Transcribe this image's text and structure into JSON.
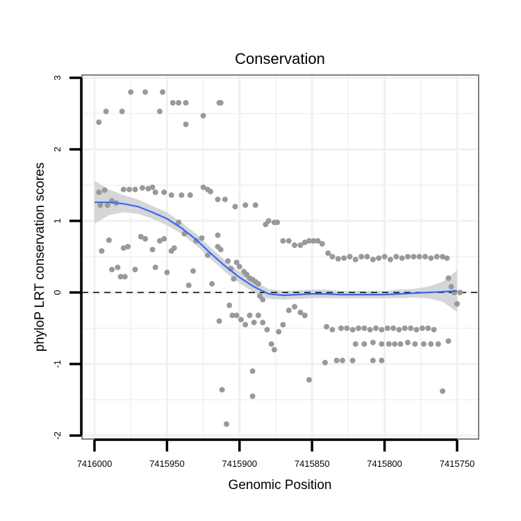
{
  "chart_data": {
    "type": "scatter",
    "title": "Conservation",
    "xlabel": "Genomic Position",
    "ylabel": "phyloP LRT conservation scores",
    "x_reversed": true,
    "xlim": [
      7416003,
      7415745
    ],
    "ylim": [
      -2,
      3
    ],
    "x_ticks": [
      7416000,
      7415950,
      7415900,
      7415850,
      7415800,
      7415750
    ],
    "x_tick_labels": [
      "7416000",
      "7415950",
      "7415900",
      "7415850",
      "7415800",
      "7415750"
    ],
    "y_ticks": [
      -2,
      -1,
      0,
      1,
      2,
      3
    ],
    "y_tick_labels": [
      "-2",
      "-1",
      "0",
      "1",
      "2",
      "3"
    ],
    "reference_line": {
      "y": 0,
      "style": "dashed"
    },
    "colors": {
      "points": "#999999",
      "smooth": "#3366ff",
      "ribbon": "#d6d6d6",
      "frame": "#7f7f7f",
      "grid": "#f0f0f0"
    },
    "points": [
      {
        "x": 7415997,
        "y": 2.38
      },
      {
        "x": 7415992,
        "y": 2.53
      },
      {
        "x": 7415981,
        "y": 2.53
      },
      {
        "x": 7415975,
        "y": 2.8
      },
      {
        "x": 7415965,
        "y": 2.8
      },
      {
        "x": 7415953,
        "y": 2.8
      },
      {
        "x": 7415955,
        "y": 2.53
      },
      {
        "x": 7415946,
        "y": 2.65
      },
      {
        "x": 7415942,
        "y": 2.65
      },
      {
        "x": 7415937,
        "y": 2.65
      },
      {
        "x": 7415937,
        "y": 2.35
      },
      {
        "x": 7415925,
        "y": 2.47
      },
      {
        "x": 7415913,
        "y": 2.65
      },
      {
        "x": 7415914,
        "y": 2.65
      },
      {
        "x": 7415996,
        "y": 1.22
      },
      {
        "x": 7415993,
        "y": 1.43
      },
      {
        "x": 7415997,
        "y": 1.4
      },
      {
        "x": 7415991,
        "y": 1.22
      },
      {
        "x": 7415988,
        "y": 1.28
      },
      {
        "x": 7415985,
        "y": 1.25
      },
      {
        "x": 7415980,
        "y": 1.44
      },
      {
        "x": 7415976,
        "y": 1.44
      },
      {
        "x": 7415972,
        "y": 1.44
      },
      {
        "x": 7415967,
        "y": 1.46
      },
      {
        "x": 7415963,
        "y": 1.45
      },
      {
        "x": 7415960,
        "y": 1.47
      },
      {
        "x": 7415958,
        "y": 1.4
      },
      {
        "x": 7415952,
        "y": 1.4
      },
      {
        "x": 7415947,
        "y": 1.36
      },
      {
        "x": 7415940,
        "y": 1.36
      },
      {
        "x": 7415934,
        "y": 1.36
      },
      {
        "x": 7415925,
        "y": 1.47
      },
      {
        "x": 7415922,
        "y": 1.44
      },
      {
        "x": 7415920,
        "y": 1.41
      },
      {
        "x": 7415915,
        "y": 1.3
      },
      {
        "x": 7415910,
        "y": 1.3
      },
      {
        "x": 7415903,
        "y": 1.2
      },
      {
        "x": 7415896,
        "y": 1.22
      },
      {
        "x": 7415889,
        "y": 1.22
      },
      {
        "x": 7415995,
        "y": 0.58
      },
      {
        "x": 7415990,
        "y": 0.73
      },
      {
        "x": 7415988,
        "y": 0.32
      },
      {
        "x": 7415984,
        "y": 0.35
      },
      {
        "x": 7415982,
        "y": 0.22
      },
      {
        "x": 7415979,
        "y": 0.22
      },
      {
        "x": 7415980,
        "y": 0.62
      },
      {
        "x": 7415977,
        "y": 0.64
      },
      {
        "x": 7415972,
        "y": 0.32
      },
      {
        "x": 7415968,
        "y": 0.78
      },
      {
        "x": 7415965,
        "y": 0.75
      },
      {
        "x": 7415960,
        "y": 0.6
      },
      {
        "x": 7415958,
        "y": 0.35
      },
      {
        "x": 7415955,
        "y": 0.72
      },
      {
        "x": 7415952,
        "y": 0.75
      },
      {
        "x": 7415950,
        "y": 0.28
      },
      {
        "x": 7415947,
        "y": 0.58
      },
      {
        "x": 7415945,
        "y": 0.62
      },
      {
        "x": 7415942,
        "y": 0.98
      },
      {
        "x": 7415938,
        "y": 0.82
      },
      {
        "x": 7415935,
        "y": 0.1
      },
      {
        "x": 7415932,
        "y": 0.3
      },
      {
        "x": 7415930,
        "y": 0.72
      },
      {
        "x": 7415926,
        "y": 0.76
      },
      {
        "x": 7415922,
        "y": 0.52
      },
      {
        "x": 7415919,
        "y": 0.12
      },
      {
        "x": 7415915,
        "y": 0.8
      },
      {
        "x": 7415915,
        "y": 0.64
      },
      {
        "x": 7415913,
        "y": 0.6
      },
      {
        "x": 7415908,
        "y": 0.44
      },
      {
        "x": 7415906,
        "y": 0.33
      },
      {
        "x": 7415904,
        "y": 0.19
      },
      {
        "x": 7415902,
        "y": 0.42
      },
      {
        "x": 7415900,
        "y": 0.36
      },
      {
        "x": 7415897,
        "y": 0.29
      },
      {
        "x": 7415895,
        "y": 0.25
      },
      {
        "x": 7415893,
        "y": 0.2
      },
      {
        "x": 7415891,
        "y": 0.18
      },
      {
        "x": 7415889,
        "y": 0.15
      },
      {
        "x": 7415887,
        "y": 0.12
      },
      {
        "x": 7415886,
        "y": -0.05
      },
      {
        "x": 7415884,
        "y": -0.1
      },
      {
        "x": 7415882,
        "y": 0.95
      },
      {
        "x": 7415880,
        "y": 1.0
      },
      {
        "x": 7415876,
        "y": 0.98
      },
      {
        "x": 7415874,
        "y": 0.98
      },
      {
        "x": 7415907,
        "y": -0.18
      },
      {
        "x": 7415905,
        "y": -0.32
      },
      {
        "x": 7415902,
        "y": -0.32
      },
      {
        "x": 7415899,
        "y": -0.38
      },
      {
        "x": 7415896,
        "y": -0.45
      },
      {
        "x": 7415893,
        "y": -0.32
      },
      {
        "x": 7415890,
        "y": -0.42
      },
      {
        "x": 7415887,
        "y": -0.32
      },
      {
        "x": 7415884,
        "y": -0.42
      },
      {
        "x": 7415881,
        "y": -0.52
      },
      {
        "x": 7415878,
        "y": -0.72
      },
      {
        "x": 7415876,
        "y": -0.8
      },
      {
        "x": 7415873,
        "y": -0.55
      },
      {
        "x": 7415870,
        "y": -0.45
      },
      {
        "x": 7415866,
        "y": -0.25
      },
      {
        "x": 7415862,
        "y": -0.2
      },
      {
        "x": 7415858,
        "y": -0.28
      },
      {
        "x": 7415855,
        "y": -0.32
      },
      {
        "x": 7415914,
        "y": -0.4
      },
      {
        "x": 7415912,
        "y": -1.36
      },
      {
        "x": 7415909,
        "y": -1.84
      },
      {
        "x": 7415891,
        "y": -1.45
      },
      {
        "x": 7415891,
        "y": -1.1
      },
      {
        "x": 7415852,
        "y": -1.22
      },
      {
        "x": 7415841,
        "y": -0.98
      },
      {
        "x": 7415833,
        "y": -0.95
      },
      {
        "x": 7415829,
        "y": -0.95
      },
      {
        "x": 7415822,
        "y": -0.95
      },
      {
        "x": 7415808,
        "y": -0.95
      },
      {
        "x": 7415802,
        "y": -0.95
      },
      {
        "x": 7415760,
        "y": -1.38
      },
      {
        "x": 7415756,
        "y": -0.68
      },
      {
        "x": 7415870,
        "y": 0.72
      },
      {
        "x": 7415866,
        "y": 0.72
      },
      {
        "x": 7415862,
        "y": 0.66
      },
      {
        "x": 7415858,
        "y": 0.66
      },
      {
        "x": 7415855,
        "y": 0.7
      },
      {
        "x": 7415852,
        "y": 0.72
      },
      {
        "x": 7415849,
        "y": 0.72
      },
      {
        "x": 7415846,
        "y": 0.72
      },
      {
        "x": 7415843,
        "y": 0.68
      },
      {
        "x": 7415839,
        "y": 0.55
      },
      {
        "x": 7415836,
        "y": 0.5
      },
      {
        "x": 7415832,
        "y": 0.47
      },
      {
        "x": 7415828,
        "y": 0.48
      },
      {
        "x": 7415824,
        "y": 0.5
      },
      {
        "x": 7415820,
        "y": 0.46
      },
      {
        "x": 7415816,
        "y": 0.5
      },
      {
        "x": 7415812,
        "y": 0.5
      },
      {
        "x": 7415808,
        "y": 0.46
      },
      {
        "x": 7415804,
        "y": 0.48
      },
      {
        "x": 7415800,
        "y": 0.5
      },
      {
        "x": 7415796,
        "y": 0.46
      },
      {
        "x": 7415792,
        "y": 0.5
      },
      {
        "x": 7415788,
        "y": 0.48
      },
      {
        "x": 7415784,
        "y": 0.5
      },
      {
        "x": 7415780,
        "y": 0.5
      },
      {
        "x": 7415776,
        "y": 0.5
      },
      {
        "x": 7415772,
        "y": 0.5
      },
      {
        "x": 7415768,
        "y": 0.48
      },
      {
        "x": 7415764,
        "y": 0.5
      },
      {
        "x": 7415760,
        "y": 0.5
      },
      {
        "x": 7415757,
        "y": 0.48
      },
      {
        "x": 7415840,
        "y": -0.48
      },
      {
        "x": 7415836,
        "y": -0.52
      },
      {
        "x": 7415830,
        "y": -0.5
      },
      {
        "x": 7415826,
        "y": -0.5
      },
      {
        "x": 7415822,
        "y": -0.52
      },
      {
        "x": 7415818,
        "y": -0.5
      },
      {
        "x": 7415814,
        "y": -0.5
      },
      {
        "x": 7415810,
        "y": -0.52
      },
      {
        "x": 7415806,
        "y": -0.5
      },
      {
        "x": 7415802,
        "y": -0.52
      },
      {
        "x": 7415798,
        "y": -0.5
      },
      {
        "x": 7415794,
        "y": -0.5
      },
      {
        "x": 7415790,
        "y": -0.52
      },
      {
        "x": 7415786,
        "y": -0.5
      },
      {
        "x": 7415782,
        "y": -0.5
      },
      {
        "x": 7415778,
        "y": -0.52
      },
      {
        "x": 7415774,
        "y": -0.5
      },
      {
        "x": 7415770,
        "y": -0.5
      },
      {
        "x": 7415766,
        "y": -0.52
      },
      {
        "x": 7415820,
        "y": -0.72
      },
      {
        "x": 7415814,
        "y": -0.72
      },
      {
        "x": 7415808,
        "y": -0.7
      },
      {
        "x": 7415802,
        "y": -0.72
      },
      {
        "x": 7415797,
        "y": -0.72
      },
      {
        "x": 7415793,
        "y": -0.72
      },
      {
        "x": 7415789,
        "y": -0.72
      },
      {
        "x": 7415784,
        "y": -0.7
      },
      {
        "x": 7415779,
        "y": -0.72
      },
      {
        "x": 7415773,
        "y": -0.72
      },
      {
        "x": 7415768,
        "y": -0.72
      },
      {
        "x": 7415763,
        "y": -0.72
      },
      {
        "x": 7415756,
        "y": 0.2
      },
      {
        "x": 7415754,
        "y": 0.08
      },
      {
        "x": 7415752,
        "y": 0.0
      },
      {
        "x": 7415750,
        "y": -0.16
      },
      {
        "x": 7415748,
        "y": 0.0
      }
    ],
    "smooth": {
      "x": [
        7416000,
        7415990,
        7415980,
        7415970,
        7415960,
        7415950,
        7415940,
        7415930,
        7415920,
        7415910,
        7415900,
        7415890,
        7415880,
        7415870,
        7415860,
        7415850,
        7415840,
        7415830,
        7415820,
        7415810,
        7415800,
        7415790,
        7415780,
        7415770,
        7415760,
        7415750
      ],
      "y": [
        1.26,
        1.26,
        1.24,
        1.2,
        1.12,
        1.03,
        0.9,
        0.74,
        0.55,
        0.37,
        0.21,
        0.08,
        -0.02,
        -0.04,
        -0.03,
        -0.02,
        -0.02,
        -0.03,
        -0.03,
        -0.03,
        -0.03,
        -0.02,
        -0.01,
        0.0,
        0.01,
        0.02
      ],
      "lower": [
        0.96,
        1.08,
        1.12,
        1.1,
        1.03,
        0.94,
        0.82,
        0.66,
        0.47,
        0.29,
        0.13,
        0.0,
        -0.09,
        -0.1,
        -0.09,
        -0.08,
        -0.08,
        -0.08,
        -0.08,
        -0.08,
        -0.08,
        -0.08,
        -0.07,
        -0.08,
        -0.13,
        -0.27
      ],
      "upper": [
        1.56,
        1.44,
        1.36,
        1.3,
        1.21,
        1.12,
        0.98,
        0.82,
        0.63,
        0.45,
        0.29,
        0.16,
        0.05,
        0.02,
        0.03,
        0.04,
        0.04,
        0.02,
        0.02,
        0.02,
        0.02,
        0.04,
        0.05,
        0.08,
        0.15,
        0.31
      ]
    }
  }
}
